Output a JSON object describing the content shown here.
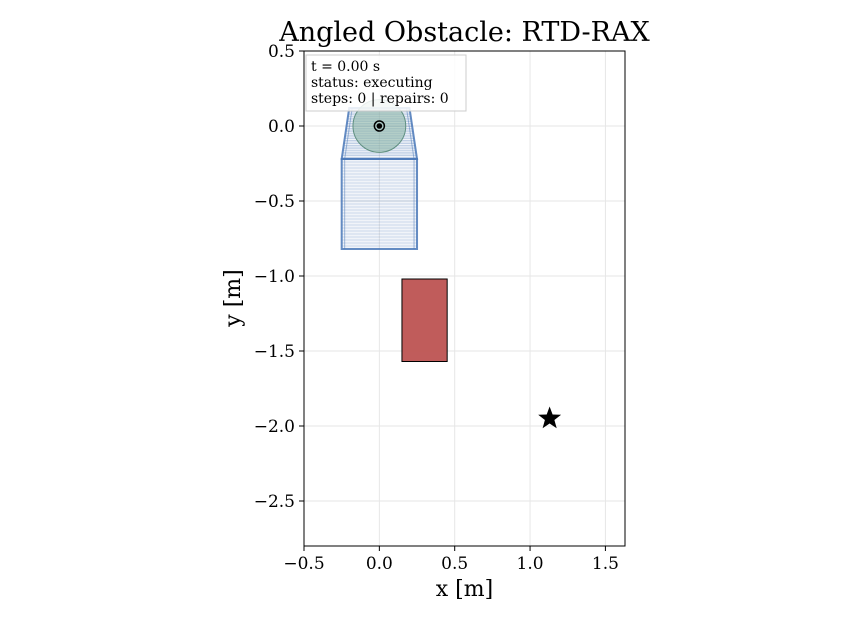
{
  "chart_data": {
    "type": "scatter",
    "title": "Angled Obstacle: RTD-RAX",
    "xlabel": "x [m]",
    "ylabel": "y [m]",
    "xlim": [
      -0.5,
      1.63
    ],
    "ylim": [
      -2.8,
      0.5
    ],
    "grid": true,
    "xticks": [
      -0.5,
      0.0,
      0.5,
      1.0,
      1.5
    ],
    "xtick_labels": [
      "−0.5",
      "0.0",
      "0.5",
      "1.0",
      "1.5"
    ],
    "yticks": [
      0.5,
      0.0,
      -0.5,
      -1.0,
      -1.5,
      -2.0,
      -2.5
    ],
    "ytick_labels": [
      "0.5",
      "0.0",
      "−0.5",
      "−1.0",
      "−1.5",
      "−2.0",
      "−2.5"
    ],
    "info_box": {
      "line1": "t = 0.00 s",
      "line2": "status: executing",
      "line3": "steps: 0 | repairs: 0"
    },
    "robot": {
      "x": 0.0,
      "y": 0.0,
      "radius": 0.175,
      "color": "#8fb8a8"
    },
    "goal": {
      "x": 1.13,
      "y": -1.95,
      "marker": "star",
      "color": "#000000"
    },
    "obstacle": {
      "x_min": 0.15,
      "x_max": 0.45,
      "y_min": -1.57,
      "y_max": -1.02,
      "color": "#bd5352"
    },
    "reachable_set": {
      "color": "#4a78b8",
      "upper": {
        "y_top": 0.12,
        "y_bottom": -0.22,
        "x_top_left": -0.2,
        "x_top_right": 0.2,
        "x_bottom_left": -0.25,
        "x_bottom_right": 0.25
      },
      "lower": {
        "y_top": -0.22,
        "y_bottom": -0.82,
        "x_top_left": -0.25,
        "x_top_right": 0.25,
        "x_bottom_left": -0.25,
        "x_bottom_right": 0.25
      },
      "slices": 30
    }
  }
}
